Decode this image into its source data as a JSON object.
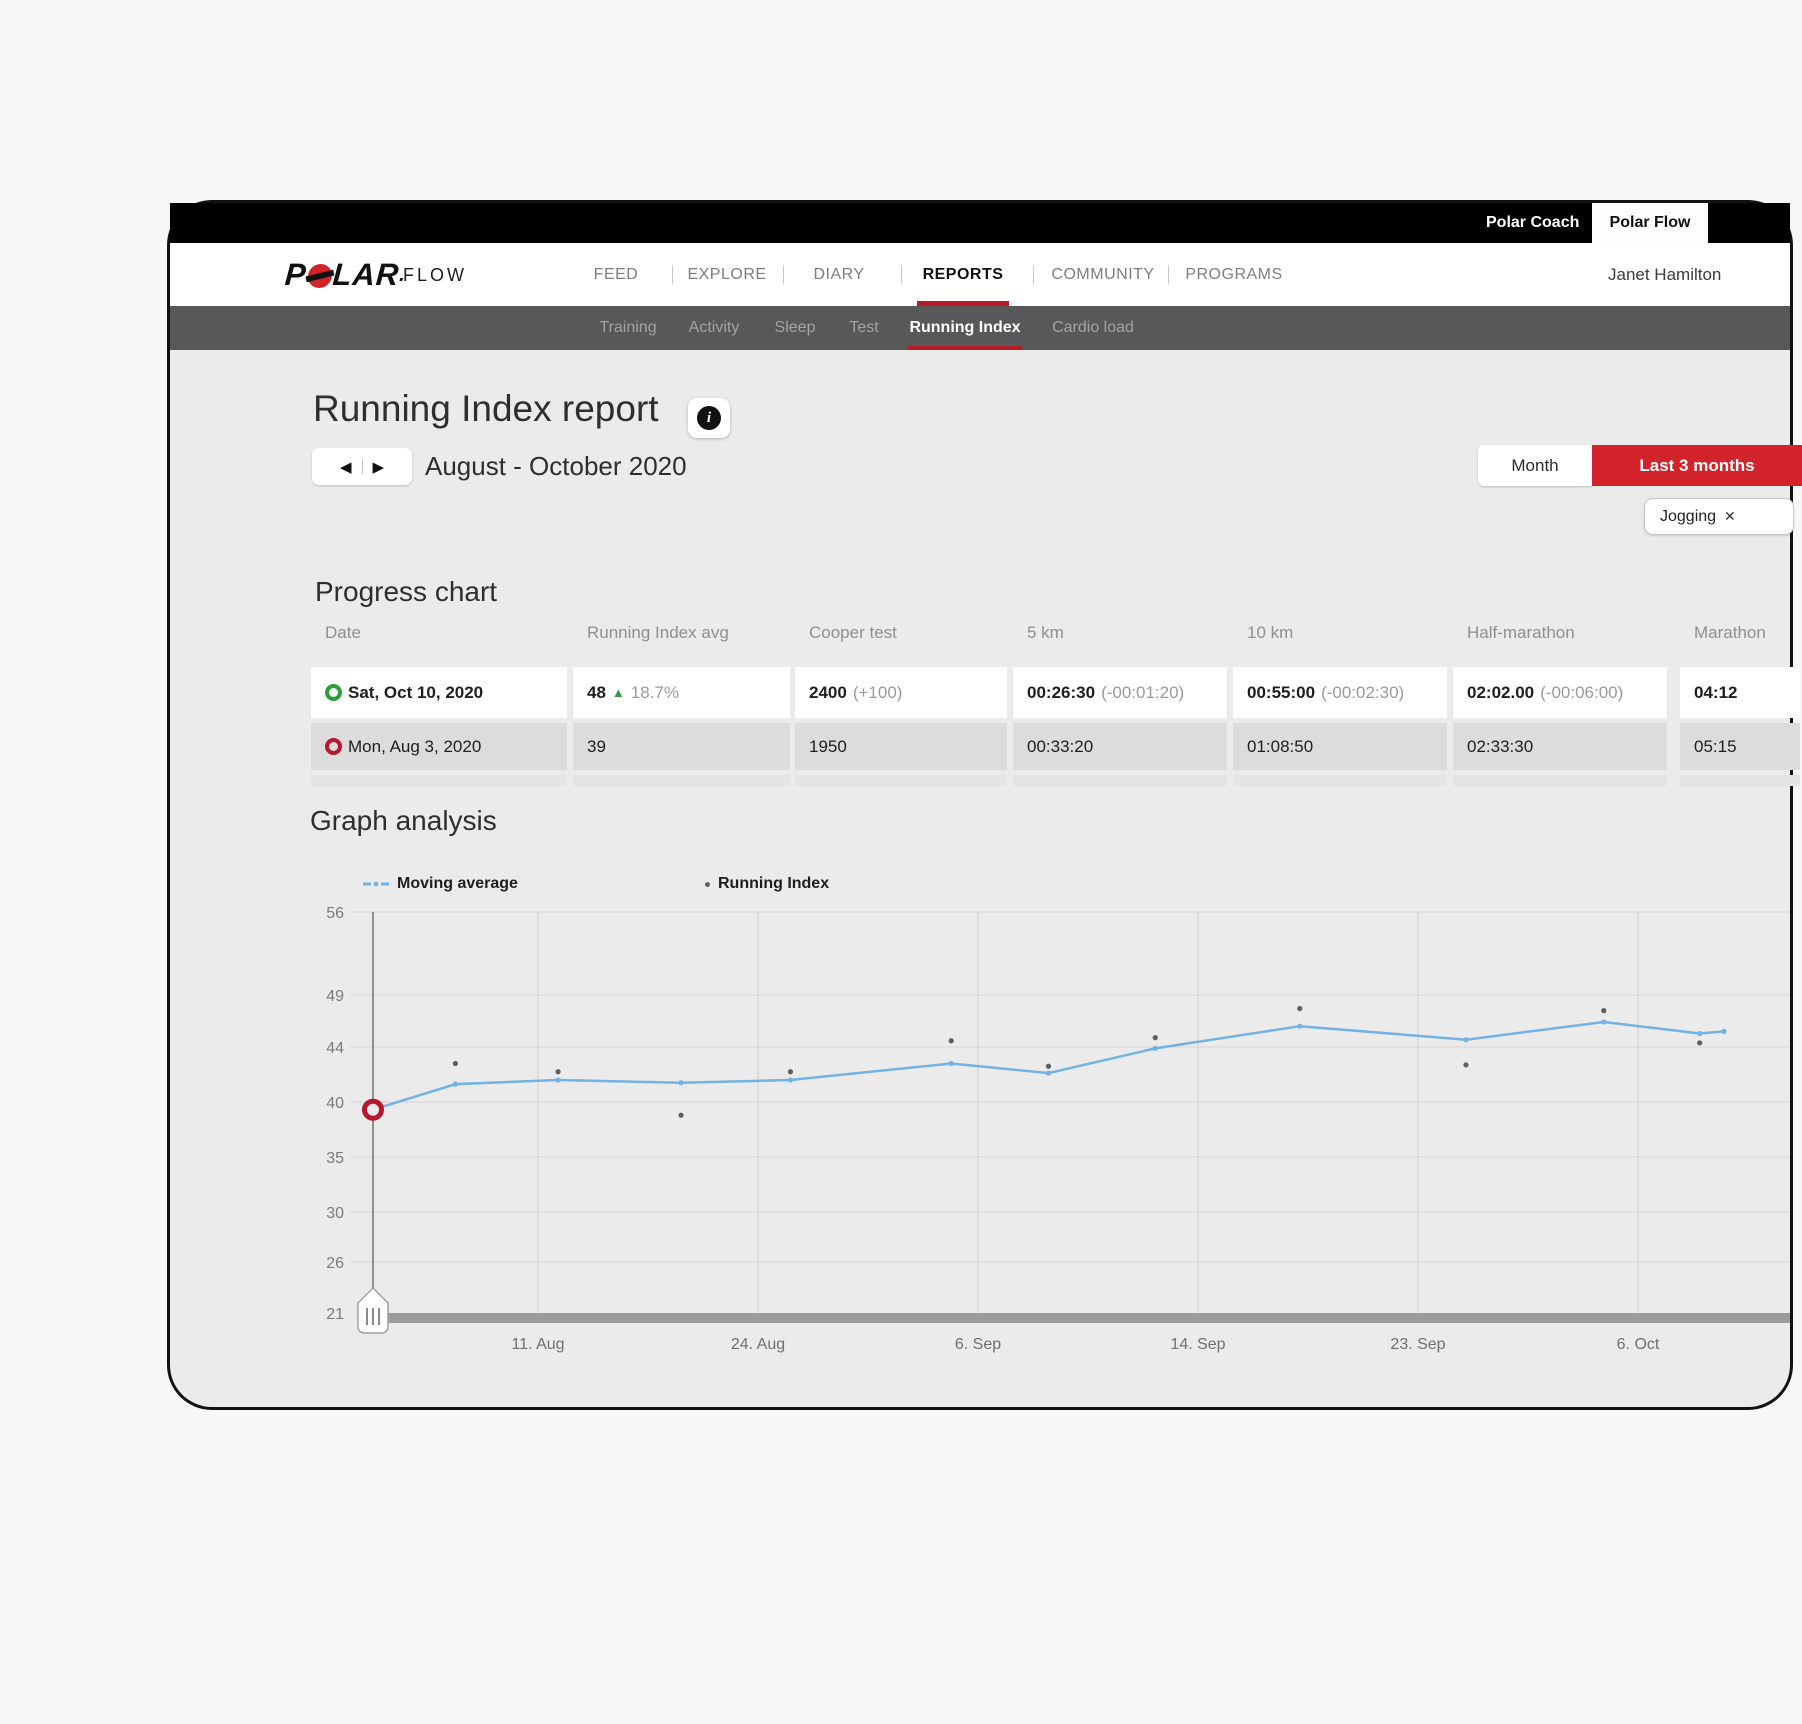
{
  "topbar": {
    "coach_label": "Polar Coach",
    "flow_tab_label": "Polar Flow"
  },
  "navbar": {
    "brand": "P",
    "brand_rest": "LAR",
    "brand_dot": ".",
    "brand_suffix": "FLOW",
    "items": [
      "FEED",
      "EXPLORE",
      "DIARY",
      "REPORTS",
      "COMMUNITY",
      "PROGRAMS"
    ],
    "active_item": "REPORTS",
    "user_name": "Janet Hamilton"
  },
  "subnav": {
    "items": [
      "Training",
      "Activity",
      "Sleep",
      "Test",
      "Running Index",
      "Cardio load"
    ],
    "active_item": "Running Index"
  },
  "header": {
    "title": "Running Index report",
    "info_glyph": "i",
    "period": "August - October 2020",
    "prev_arrow": "◀",
    "next_arrow": "▶",
    "month_button": "Month",
    "range_button": "Last 3 months",
    "filter_chip": "Jogging",
    "filter_chip_close": "✕"
  },
  "progress": {
    "heading": "Progress chart",
    "columns": [
      "Date",
      "Running Index avg",
      "Cooper test",
      "5 km",
      "10 km",
      "Half-marathon",
      "Marathon"
    ],
    "rows": [
      {
        "marker": "green",
        "date": "Sat, Oct 10, 2020",
        "emphasis": true,
        "cells": [
          {
            "value": "48",
            "delta": "18.7%",
            "delta_type": "up"
          },
          {
            "value": "2400",
            "delta": "(+100)"
          },
          {
            "value": "00:26:30",
            "delta": "(-00:01:20)"
          },
          {
            "value": "00:55:00",
            "delta": "(-00:02:30)"
          },
          {
            "value": "02:02.00",
            "delta": "(-00:06:00)"
          },
          {
            "value": "04:12",
            "delta": ""
          }
        ]
      },
      {
        "marker": "red",
        "date": "Mon, Aug 3, 2020",
        "emphasis": false,
        "cells": [
          {
            "value": "39",
            "delta": ""
          },
          {
            "value": "1950",
            "delta": ""
          },
          {
            "value": "00:33:20",
            "delta": ""
          },
          {
            "value": "01:08:50",
            "delta": ""
          },
          {
            "value": "02:33:30",
            "delta": ""
          },
          {
            "value": "05:15",
            "delta": ""
          }
        ]
      }
    ]
  },
  "graph": {
    "heading": "Graph analysis"
  },
  "chart_data": {
    "type": "line",
    "title": "Graph analysis",
    "y_ticks": [
      56,
      49,
      44,
      40,
      35,
      30,
      26,
      21
    ],
    "y_range": [
      21,
      56
    ],
    "x_labels": [
      "11. Aug",
      "24. Aug",
      "6. Sep",
      "14. Sep",
      "23. Sep",
      "6. Oct"
    ],
    "grid": true,
    "legend_position": "top-left",
    "start_marker": {
      "x": 0,
      "value": 39.3,
      "color": "#b5182f"
    },
    "series": [
      {
        "name": "Moving average",
        "type": "line",
        "color": "#72b2e4",
        "points": [
          [
            0.0,
            39.3
          ],
          [
            0.061,
            41.3
          ],
          [
            0.137,
            41.6
          ],
          [
            0.228,
            41.4
          ],
          [
            0.309,
            41.6
          ],
          [
            0.428,
            42.8
          ],
          [
            0.5,
            42.1
          ],
          [
            0.579,
            43.9
          ],
          [
            0.686,
            46.0
          ],
          [
            0.809,
            44.7
          ],
          [
            0.911,
            46.4
          ],
          [
            0.982,
            45.3
          ],
          [
            1.0,
            45.5
          ]
        ]
      },
      {
        "name": "Running Index",
        "type": "scatter",
        "color": "#5f5f5f",
        "points": [
          [
            0.061,
            42.8
          ],
          [
            0.137,
            42.2
          ],
          [
            0.228,
            38.8
          ],
          [
            0.309,
            42.2
          ],
          [
            0.428,
            44.6
          ],
          [
            0.5,
            42.6
          ],
          [
            0.579,
            44.9
          ],
          [
            0.686,
            47.7
          ],
          [
            0.809,
            42.7
          ],
          [
            0.911,
            47.5
          ],
          [
            0.982,
            44.4
          ]
        ]
      }
    ]
  }
}
